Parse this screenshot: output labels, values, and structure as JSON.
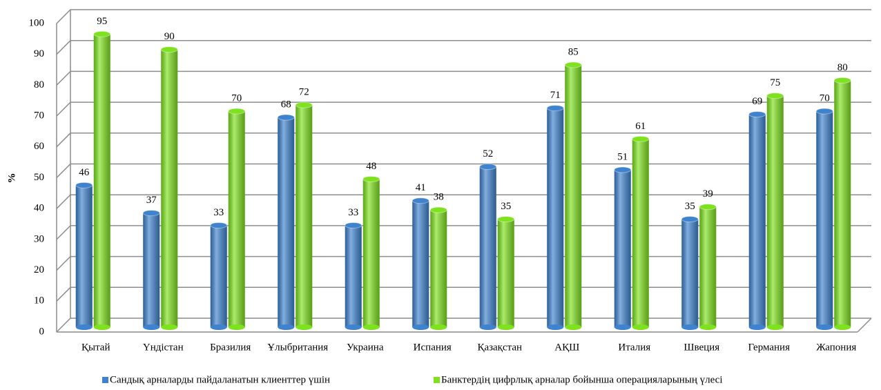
{
  "chart_data": {
    "type": "bar",
    "y_label": "%",
    "categories": [
      "Қытай",
      "Үндістан",
      "Бразилия",
      "Ұлыбритания",
      "Украина",
      "Испания",
      "Қазақстан",
      "АҚШ",
      "Италия",
      "Швеция",
      "Германия",
      "Жапония"
    ],
    "series": [
      {
        "name": "Сандық арналарды пайдаланатын клиенттер үшін",
        "color": "#3f83cf",
        "values": [
          46,
          37,
          33,
          68,
          33,
          41,
          52,
          71,
          51,
          35,
          69,
          70
        ]
      },
      {
        "name": "Банктердің цифрлық арналар бойынша операцияларының үлесі",
        "color": "#7fe21f",
        "values": [
          95,
          90,
          70,
          72,
          48,
          38,
          35,
          85,
          61,
          39,
          75,
          80
        ]
      }
    ],
    "ylim": [
      0,
      100
    ],
    "yticks": [
      0,
      10,
      20,
      30,
      40,
      50,
      60,
      70,
      80,
      90,
      100
    ],
    "grid": true
  }
}
